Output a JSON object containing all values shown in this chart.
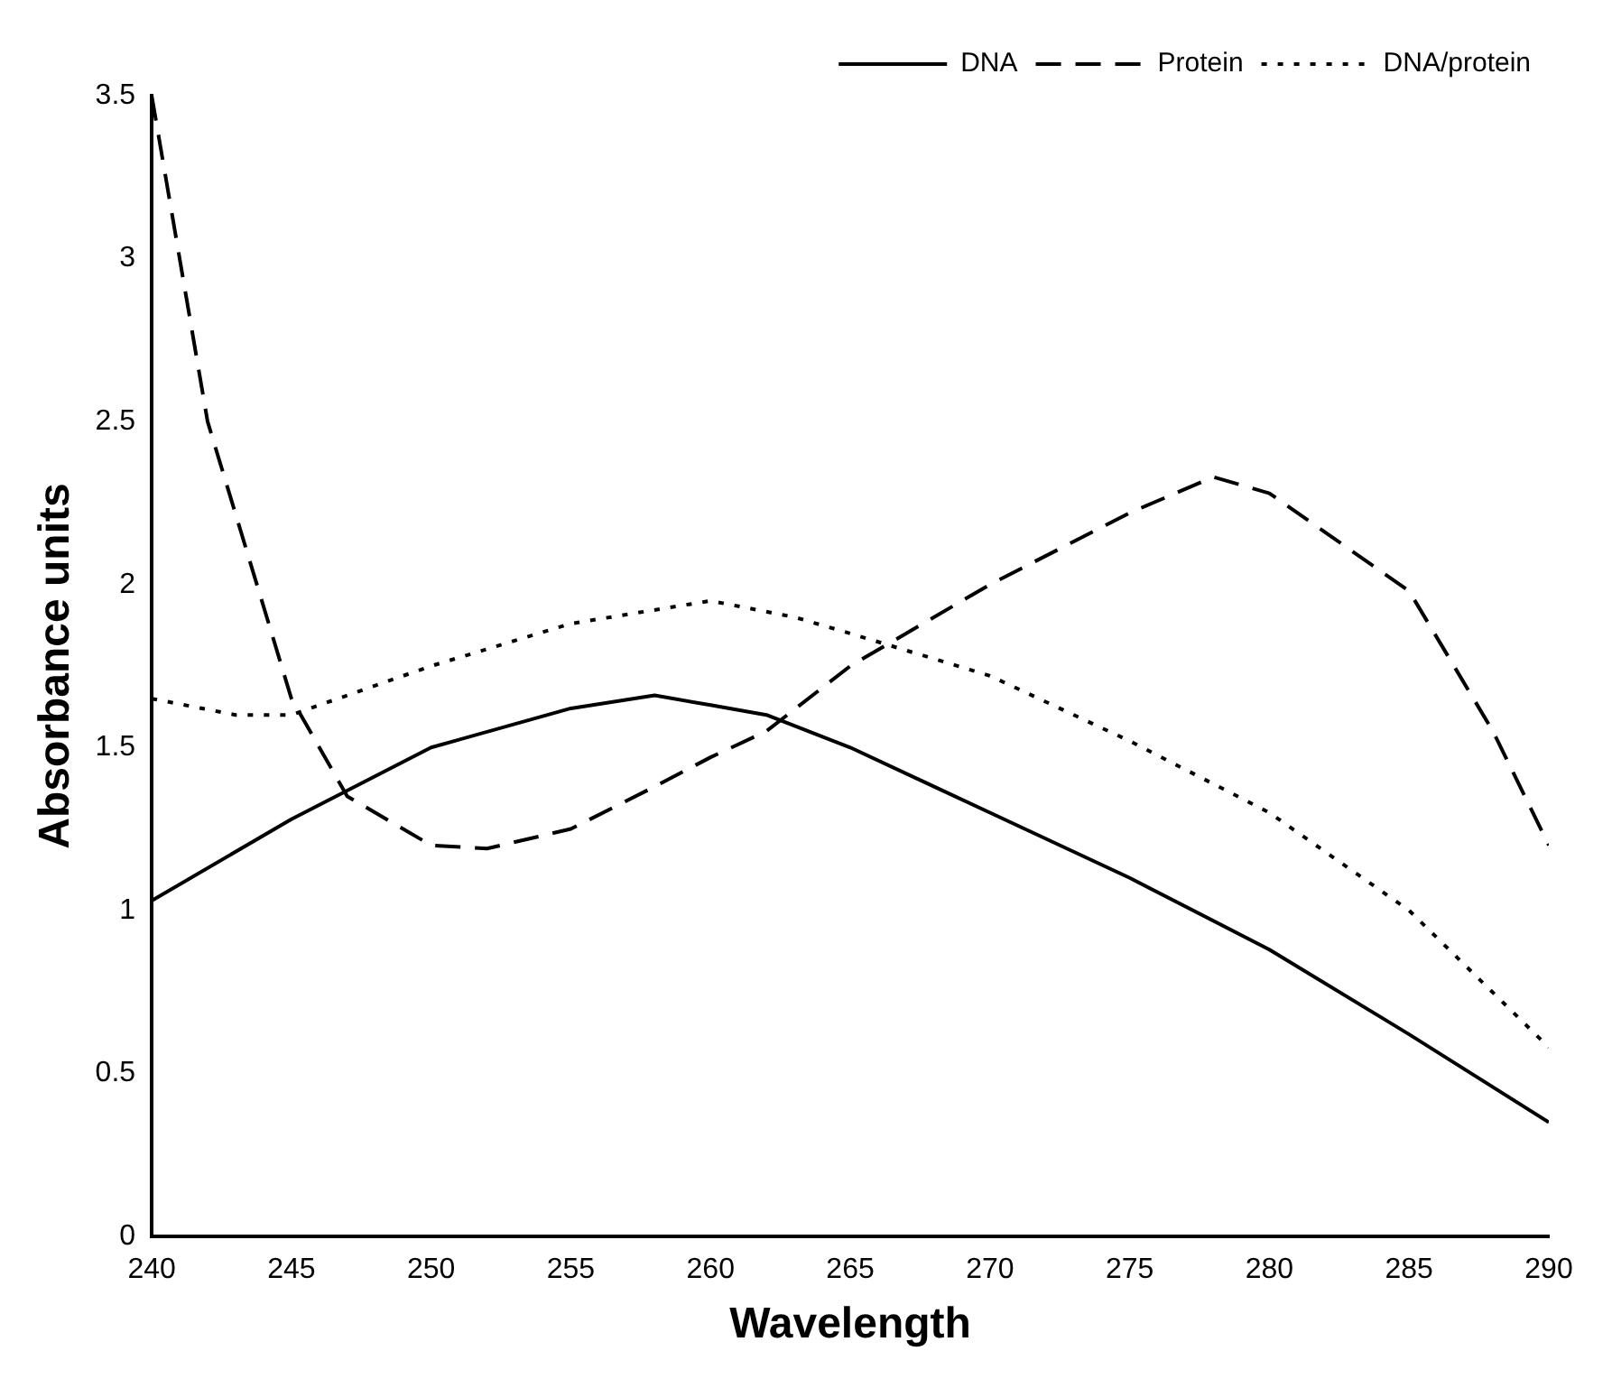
{
  "chart_data": {
    "type": "line",
    "xlabel": "Wavelength",
    "ylabel": "Absorbance units",
    "xlim": [
      240,
      290
    ],
    "xticks": [
      240,
      245,
      250,
      255,
      260,
      265,
      270,
      275,
      280,
      285,
      290
    ],
    "ylim": [
      0,
      3.5
    ],
    "yticks": [
      0,
      0.5,
      1,
      1.5,
      2,
      2.5,
      3,
      3.5
    ],
    "grid": false,
    "legend": "top right",
    "marker": "none",
    "series": [
      {
        "name": "DNA",
        "color": "#000000",
        "line_style": "solid",
        "x": [
          240,
          245,
          250,
          255,
          258,
          260,
          262,
          265,
          268,
          270,
          275,
          280,
          285,
          290
        ],
        "values": [
          1.03,
          1.28,
          1.5,
          1.62,
          1.66,
          1.63,
          1.6,
          1.5,
          1.38,
          1.3,
          1.1,
          0.88,
          0.62,
          0.35
        ]
      },
      {
        "name": "Protein",
        "color": "#000000",
        "line_style": "dashed",
        "x": [
          240,
          242,
          245,
          247,
          250,
          252,
          255,
          258,
          260,
          262,
          265,
          270,
          275,
          278,
          280,
          285,
          288,
          290
        ],
        "values": [
          3.5,
          2.5,
          1.65,
          1.35,
          1.2,
          1.19,
          1.25,
          1.38,
          1.47,
          1.55,
          1.75,
          2.0,
          2.22,
          2.33,
          2.28,
          1.98,
          1.55,
          1.2
        ]
      },
      {
        "name": "DNA/protein",
        "color": "#000000",
        "line_style": "dotted",
        "x": [
          240,
          243,
          245,
          250,
          255,
          260,
          263,
          265,
          270,
          275,
          280,
          285,
          290
        ],
        "values": [
          1.65,
          1.6,
          1.6,
          1.75,
          1.88,
          1.95,
          1.9,
          1.85,
          1.72,
          1.52,
          1.3,
          1.0,
          0.58
        ]
      }
    ]
  }
}
